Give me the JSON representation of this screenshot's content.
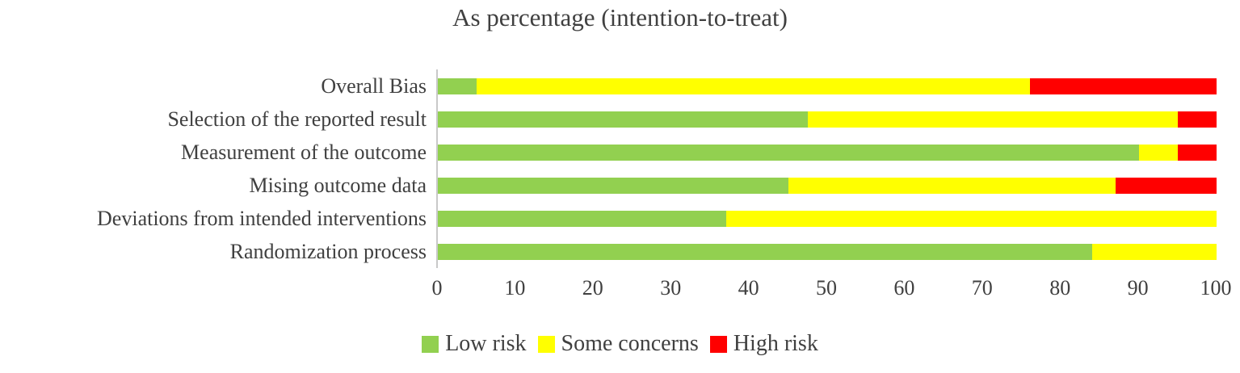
{
  "chart_data": {
    "type": "bar",
    "orientation": "horizontal-stacked",
    "title": "As percentage (intention-to-treat)",
    "categories": [
      "Overall Bias",
      "Selection of the reported result",
      "Measurement of the outcome",
      "Mising outcome data",
      "Deviations from intended interventions",
      "Randomization process"
    ],
    "series": [
      {
        "name": "Low risk",
        "color": "#92D050",
        "values": [
          5,
          47.5,
          90,
          45,
          37,
          84
        ]
      },
      {
        "name": "Some concerns",
        "color": "#FFFF00",
        "values": [
          71,
          47.5,
          5,
          42,
          63,
          16
        ]
      },
      {
        "name": "High risk",
        "color": "#FF0000",
        "values": [
          24,
          5,
          5,
          13,
          0,
          0
        ]
      }
    ],
    "x_ticks": [
      0,
      10,
      20,
      30,
      40,
      50,
      60,
      70,
      80,
      90,
      100
    ],
    "xlim": [
      0,
      100
    ],
    "grid": false,
    "legend_position": "bottom",
    "text_color": "#404040",
    "axis_line_color": "#C9C9C9"
  }
}
